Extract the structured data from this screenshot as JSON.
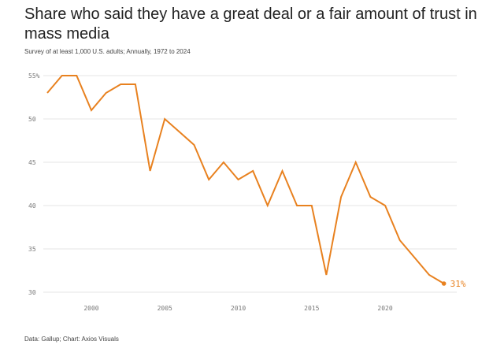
{
  "title": "Share who said they have a great deal or a fair amount of trust in mass media",
  "subtitle": "Survey of at least 1,000 U.S. adults; Annually, 1972 to 2024",
  "source": "Data: Gallup; Chart: Axios Visuals",
  "chart_data": {
    "type": "line",
    "title": "Share who said they have a great deal or a fair amount of trust in mass media",
    "xlabel": "",
    "ylabel": "",
    "xlim": [
      1997,
      2024.5
    ],
    "ylim": [
      30,
      55
    ],
    "grid": "horizontal",
    "color": "#e8811f",
    "x_ticks": [
      2000,
      2005,
      2010,
      2015,
      2020
    ],
    "x_tick_labels": [
      "2000",
      "2005",
      "2010",
      "2015",
      "2020"
    ],
    "y_ticks": [
      30,
      35,
      40,
      45,
      50,
      55
    ],
    "y_tick_labels": [
      "30",
      "35",
      "40",
      "45",
      "50",
      "55%"
    ],
    "end_label": "31%",
    "series": [
      {
        "x": [
          1997,
          1998,
          1999,
          2000,
          2001,
          2002,
          2003,
          2004,
          2005,
          2006,
          2007,
          2008,
          2009,
          2010,
          2011,
          2012,
          2013,
          2014,
          2015,
          2016,
          2017,
          2018,
          2019,
          2020,
          2021,
          2022,
          2023,
          2024
        ],
        "y": [
          53,
          55,
          55,
          51,
          53,
          54,
          54,
          44,
          50,
          48.5,
          47,
          43,
          45,
          43,
          44,
          40,
          44,
          40,
          40,
          32,
          41,
          45,
          41,
          40,
          36,
          34,
          32,
          31
        ]
      }
    ]
  }
}
